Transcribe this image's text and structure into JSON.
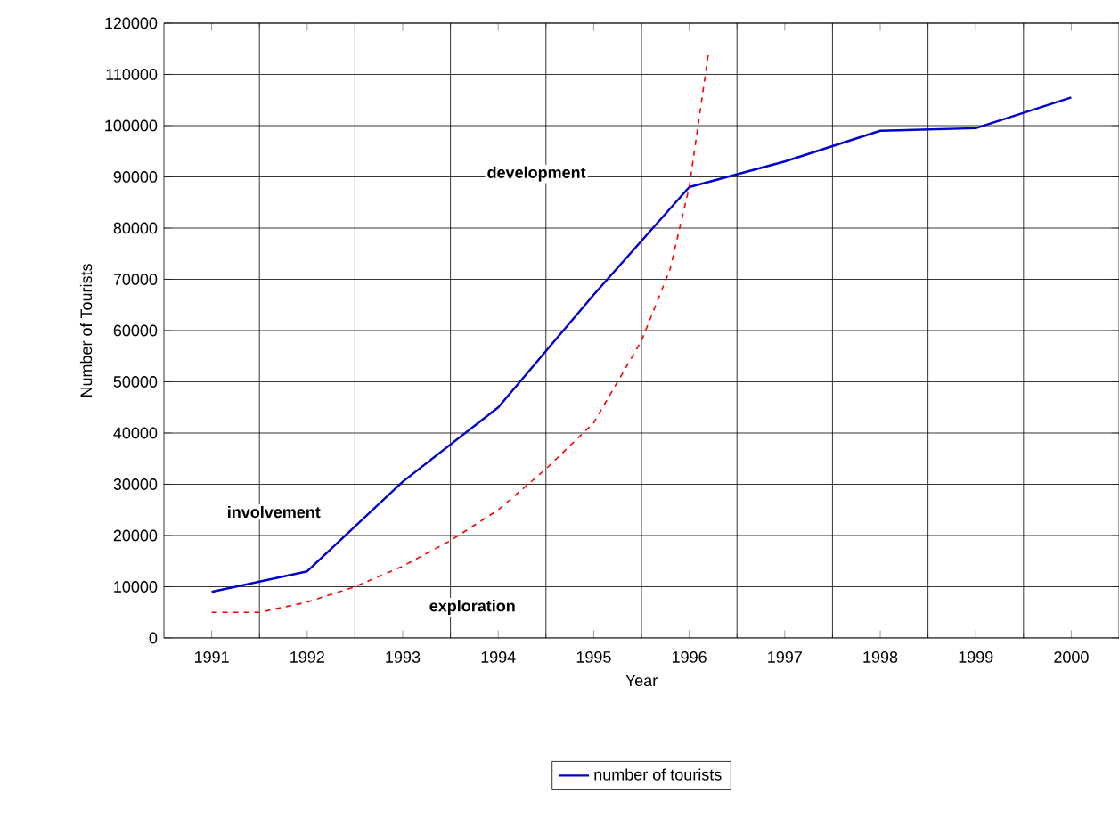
{
  "chart_data": {
    "type": "line",
    "xlabel": "Year",
    "ylabel": "Number of Tourists",
    "xlim": [
      1990.5,
      2000.5
    ],
    "xticks": [
      1991,
      1992,
      1993,
      1994,
      1995,
      1996,
      1997,
      1998,
      1999,
      2000
    ],
    "ylim": [
      0,
      120000
    ],
    "yticks": [
      0,
      10000,
      20000,
      30000,
      40000,
      50000,
      60000,
      70000,
      80000,
      90000,
      100000,
      110000,
      120000
    ],
    "grid": true,
    "legend": "bottom",
    "series": [
      {
        "name": "number of tourists",
        "color": "#0000cc",
        "line_style": "solid",
        "x": [
          1991,
          1992,
          1993,
          1994,
          1995,
          1996,
          1997,
          1998,
          1999,
          2000
        ],
        "values": [
          9000,
          13000,
          30500,
          45000,
          67000,
          88000,
          93000,
          99000,
          99500,
          105500
        ]
      },
      {
        "color": "#ff0000",
        "line_style": "dashed",
        "x": [
          1991,
          1991.5,
          1992,
          1992.5,
          1993,
          1993.5,
          1994,
          1994.5,
          1995,
          1995.5,
          1995.8,
          1996,
          1996.2
        ],
        "values": [
          5000,
          5000,
          7000,
          10000,
          14000,
          19000,
          25000,
          33000,
          42000,
          58000,
          72000,
          88000,
          114000
        ]
      }
    ],
    "annotations": [
      "involvement",
      "development",
      "exploration"
    ]
  }
}
